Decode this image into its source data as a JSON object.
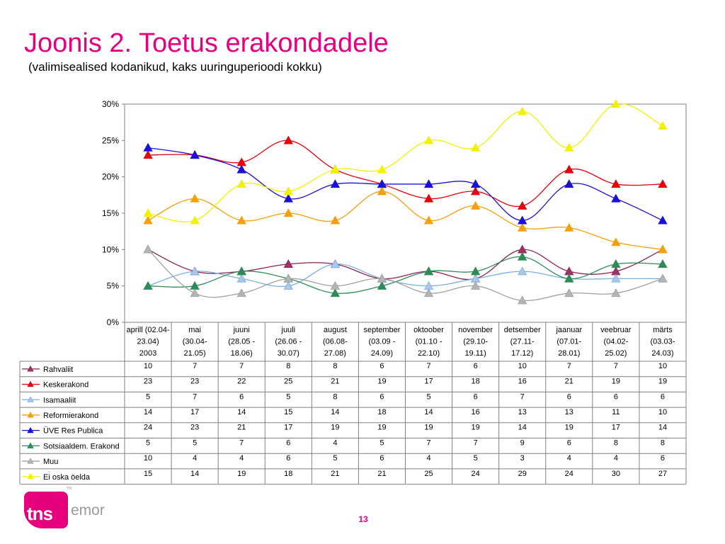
{
  "page": {
    "title": "Joonis 2. Toetus erakondadele",
    "subtitle": "(valimisealised kodanikud, kaks uuringuperioodi kokku)",
    "page_number": "13",
    "logo": {
      "tns": "tns",
      "emor": "emor",
      "tm": "TM"
    }
  },
  "chart_data": {
    "type": "line",
    "title": "",
    "xlabel": "",
    "ylabel": "",
    "ylim": [
      0,
      30
    ],
    "yticks": [
      "0%",
      "5%",
      "10%",
      "15%",
      "20%",
      "25%",
      "30%"
    ],
    "grid": false,
    "legend": "table-left",
    "categories": [
      [
        "aprill (02.04-",
        "23.04)",
        "2003"
      ],
      [
        "mai",
        "(30.04-",
        "21.05)"
      ],
      [
        "juuni",
        "(28.05 -",
        "18.06)"
      ],
      [
        "juuli",
        "(26.06 -",
        "30.07)"
      ],
      [
        "august",
        "(06.08-",
        "27.08)"
      ],
      [
        "september",
        "(03.09 -",
        "24.09)"
      ],
      [
        "oktoober",
        "(01.10 -",
        "22.10)"
      ],
      [
        "november",
        "(29.10-",
        "19.11)"
      ],
      [
        "detsember",
        "(27.11-",
        "17.12)"
      ],
      [
        "jaanuar",
        "(07.01-",
        "28.01)"
      ],
      [
        "veebruar",
        "(04.02-",
        "25.02)"
      ],
      [
        "märts",
        "(03.03-",
        "24.03)"
      ]
    ],
    "series": [
      {
        "name": "Rahvaliit",
        "color": "#8b2252",
        "fill": "#9c3566",
        "values": [
          10,
          7,
          7,
          8,
          8,
          6,
          7,
          6,
          10,
          7,
          7,
          10
        ]
      },
      {
        "name": "Keskerakond",
        "color": "#e8000d",
        "fill": "#e8000d",
        "values": [
          23,
          23,
          22,
          25,
          21,
          19,
          17,
          18,
          16,
          21,
          19,
          19
        ]
      },
      {
        "name": "Isamaaliit",
        "color": "#7ab0e0",
        "fill": "#a8c8ec",
        "values": [
          5,
          7,
          6,
          5,
          8,
          6,
          5,
          6,
          7,
          6,
          6,
          6
        ]
      },
      {
        "name": "Reformierakond",
        "color": "#f5a00a",
        "fill": "#f5a00a",
        "values": [
          14,
          17,
          14,
          15,
          14,
          18,
          14,
          16,
          13,
          13,
          11,
          10
        ]
      },
      {
        "name": "ÜVE Res Publica",
        "color": "#1b10d6",
        "fill": "#1b10d6",
        "values": [
          24,
          23,
          21,
          17,
          19,
          19,
          19,
          19,
          14,
          19,
          17,
          14
        ]
      },
      {
        "name": "Sotsiaaldem. Erakond",
        "color": "#2e8b57",
        "fill": "#2e8b57",
        "values": [
          5,
          5,
          7,
          6,
          4,
          5,
          7,
          7,
          9,
          6,
          8,
          8
        ]
      },
      {
        "name": "Muu",
        "color": "#a0a0a0",
        "fill": "#b4b4b4",
        "values": [
          10,
          4,
          4,
          6,
          5,
          6,
          4,
          5,
          3,
          4,
          4,
          6
        ]
      },
      {
        "name": "Ei oska öelda",
        "color": "#f2f200",
        "fill": "#f2f200",
        "values": [
          15,
          14,
          19,
          18,
          21,
          21,
          25,
          24,
          29,
          24,
          30,
          27
        ]
      }
    ]
  }
}
